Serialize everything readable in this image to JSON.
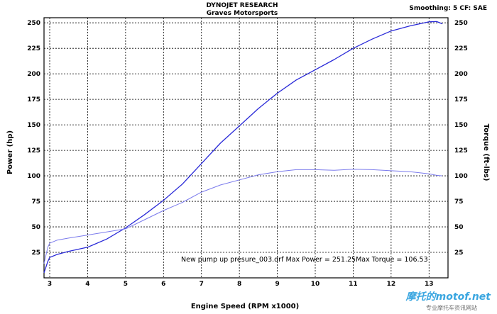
{
  "header": {
    "title": "DYNOJET RESEARCH",
    "subtitle": "Graves Motorsports",
    "settings": "Smoothing: 5  CF: SAE"
  },
  "watermark": {
    "brand": "摩托的motof.net",
    "tagline": "专业摩托车资讯网站"
  },
  "chart_data": {
    "type": "line",
    "title": "DYNOJET RESEARCH",
    "subtitle": "Graves Motorsports",
    "xlabel": "Engine Speed (RPM x1000)",
    "ylabel": "Power (hp)",
    "y2label": "Torque (ft-lbs)",
    "xlim": [
      2.85,
      13.5
    ],
    "ylim": [
      0,
      255
    ],
    "y2lim": [
      0,
      255
    ],
    "xticks": [
      3,
      4,
      5,
      6,
      7,
      8,
      9,
      10,
      11,
      12,
      13
    ],
    "yticks": [
      25,
      50,
      75,
      100,
      125,
      150,
      175,
      200,
      225,
      250
    ],
    "grid": true,
    "annotation": "New pump up presure_003.drf Max Power = 251.25Max Torque = 106.53",
    "series": [
      {
        "color": "#2a2ad8",
        "x": [
          2.85,
          2.95,
          3.0,
          3.2,
          3.5,
          4.0,
          4.5,
          5.0,
          5.5,
          6.0,
          6.5,
          7.0,
          7.5,
          8.0,
          8.5,
          9.0,
          9.5,
          10.0,
          10.5,
          11.0,
          11.5,
          12.0,
          12.5,
          13.0,
          13.2,
          13.35
        ],
        "values": [
          5,
          16,
          20,
          23,
          26,
          30,
          38,
          49,
          62,
          76,
          92,
          112,
          132,
          149,
          166,
          181,
          194,
          204,
          214,
          225,
          234,
          242,
          247,
          251,
          251.25,
          249
        ]
      },
      {
        "color": "#7a7aec",
        "x": [
          2.85,
          2.95,
          3.0,
          3.2,
          3.5,
          4.0,
          4.5,
          5.0,
          5.5,
          6.0,
          6.5,
          7.0,
          7.5,
          8.0,
          8.5,
          9.0,
          9.5,
          10.0,
          10.5,
          11.0,
          11.5,
          12.0,
          12.5,
          13.0,
          13.2,
          13.35
        ],
        "values": [
          14,
          30,
          34,
          37,
          39,
          42,
          45,
          48,
          57,
          66,
          74,
          84,
          91,
          96,
          101,
          104,
          106,
          106,
          105.5,
          106.5,
          106,
          105,
          104,
          102,
          100.5,
          100
        ]
      }
    ]
  }
}
